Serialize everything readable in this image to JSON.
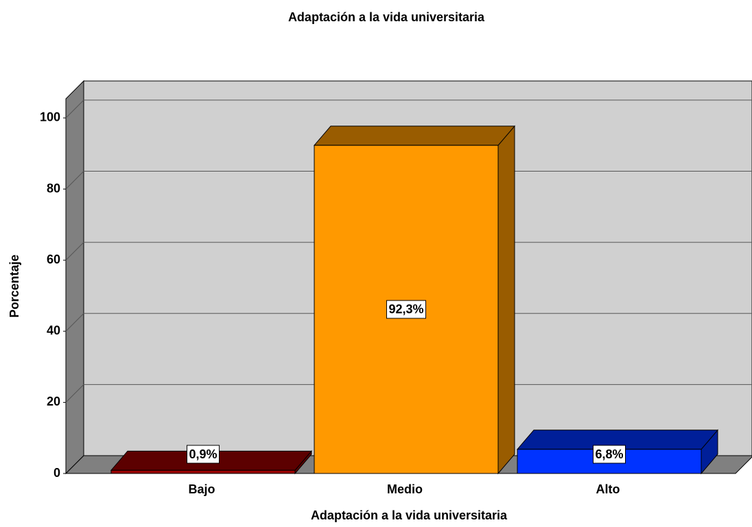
{
  "chart_data": {
    "type": "bar3d",
    "title": "Adaptación a la vida universitaria",
    "x_label": "Adaptación a la vida universitaria",
    "y_label": "Porcentaje",
    "categories": [
      "Bajo",
      "Medio",
      "Alto"
    ],
    "values": [
      0.9,
      92.3,
      6.8
    ],
    "value_labels": [
      "0,9%",
      "92,3%",
      "6,8%"
    ],
    "colors": [
      "#990000",
      "#ff9900",
      "#0033ff"
    ],
    "ylim": [
      0,
      105
    ],
    "yticks": [
      0,
      20,
      40,
      60,
      80,
      100
    ],
    "grid": true
  }
}
